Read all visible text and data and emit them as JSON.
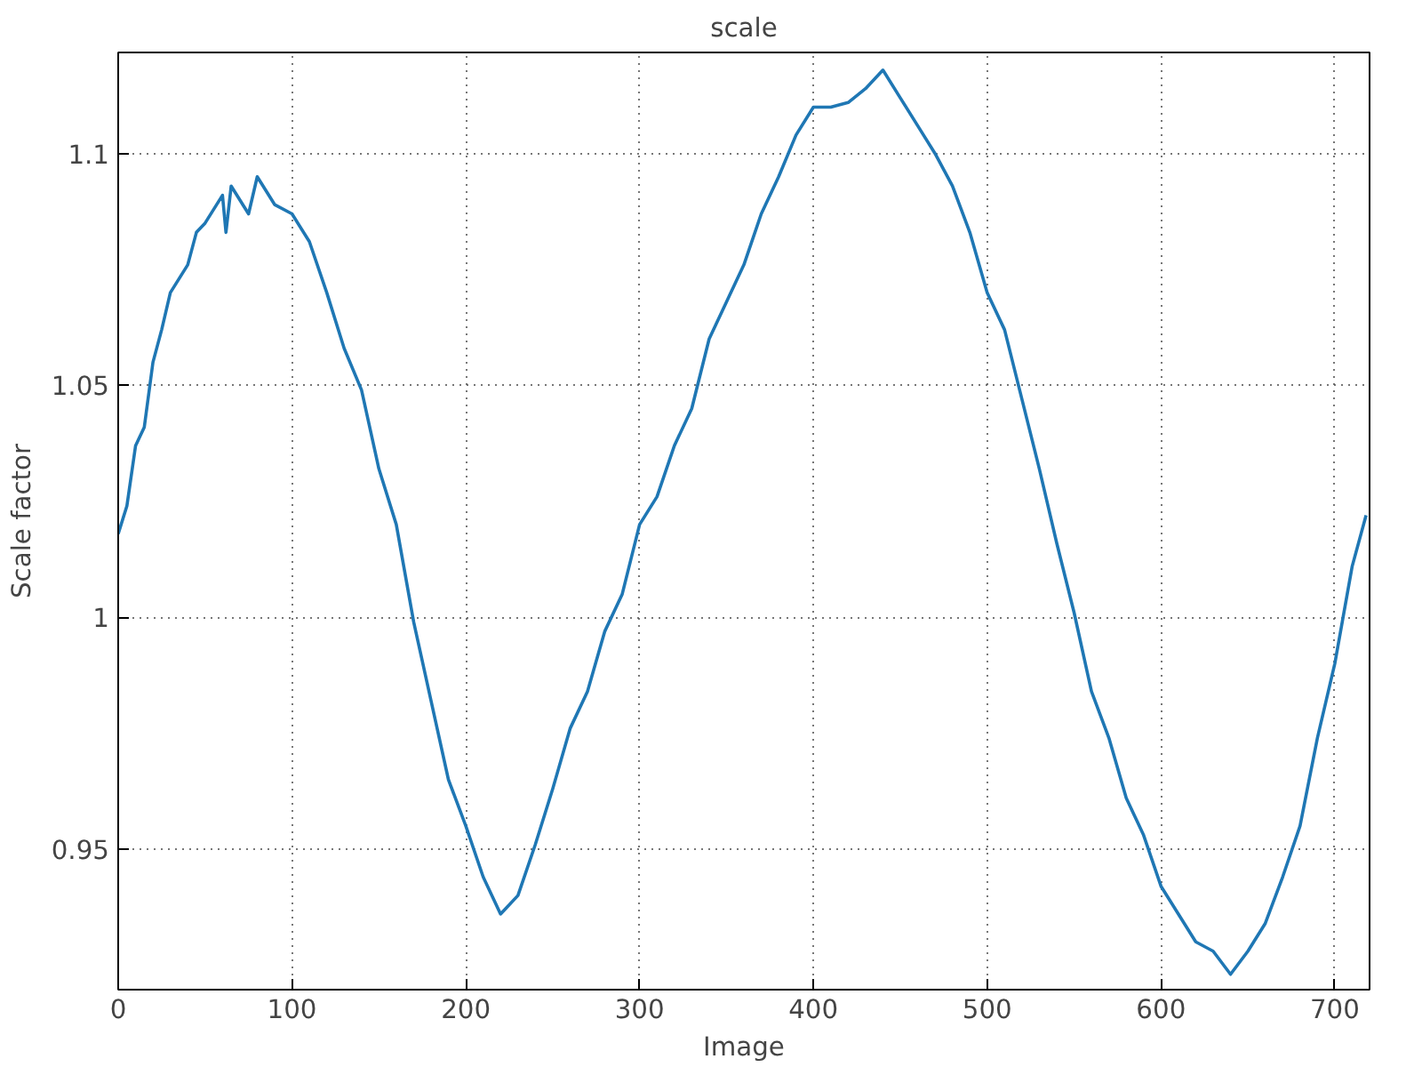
{
  "chart_data": {
    "type": "line",
    "title": "scale",
    "xlabel": "Image",
    "ylabel": "Scale factor",
    "x": [
      0,
      5,
      10,
      15,
      20,
      25,
      30,
      40,
      45,
      50,
      60,
      62,
      65,
      75,
      80,
      90,
      100,
      110,
      120,
      130,
      140,
      150,
      160,
      170,
      180,
      190,
      200,
      210,
      220,
      230,
      240,
      250,
      260,
      270,
      280,
      290,
      300,
      310,
      320,
      330,
      340,
      350,
      360,
      370,
      380,
      390,
      400,
      410,
      420,
      430,
      440,
      450,
      460,
      470,
      480,
      490,
      500,
      510,
      520,
      530,
      540,
      550,
      560,
      570,
      580,
      590,
      600,
      610,
      620,
      630,
      640,
      650,
      660,
      670,
      680,
      690,
      700,
      710,
      718
    ],
    "series": [
      {
        "color": "#1f77b4",
        "values": [
          1.018,
          1.024,
          1.037,
          1.041,
          1.055,
          1.062,
          1.07,
          1.076,
          1.083,
          1.085,
          1.091,
          1.083,
          1.093,
          1.087,
          1.095,
          1.089,
          1.087,
          1.081,
          1.07,
          1.058,
          1.049,
          1.032,
          1.02,
          0.999,
          0.982,
          0.965,
          0.955,
          0.944,
          0.936,
          0.94,
          0.951,
          0.963,
          0.976,
          0.984,
          0.997,
          1.005,
          1.02,
          1.026,
          1.037,
          1.045,
          1.06,
          1.068,
          1.076,
          1.087,
          1.095,
          1.104,
          1.11,
          1.11,
          1.111,
          1.114,
          1.118,
          1.112,
          1.106,
          1.1,
          1.093,
          1.083,
          1.07,
          1.062,
          1.047,
          1.032,
          1.016,
          1.001,
          0.984,
          0.974,
          0.961,
          0.953,
          0.942,
          0.936,
          0.93,
          0.928,
          0.923,
          0.928,
          0.934,
          0.944,
          0.955,
          0.974,
          0.99,
          1.011,
          1.022
        ]
      }
    ],
    "xlim": [
      0,
      720
    ],
    "ylim": [
      0.9197,
      1.1218
    ],
    "xticks": [
      0,
      100,
      200,
      300,
      400,
      500,
      600,
      700
    ],
    "yticks": [
      0.95,
      {
        "value": 1,
        "label": "1"
      },
      1.05,
      1.1
    ],
    "grid": true,
    "line_style": "solid",
    "marker": "none"
  }
}
